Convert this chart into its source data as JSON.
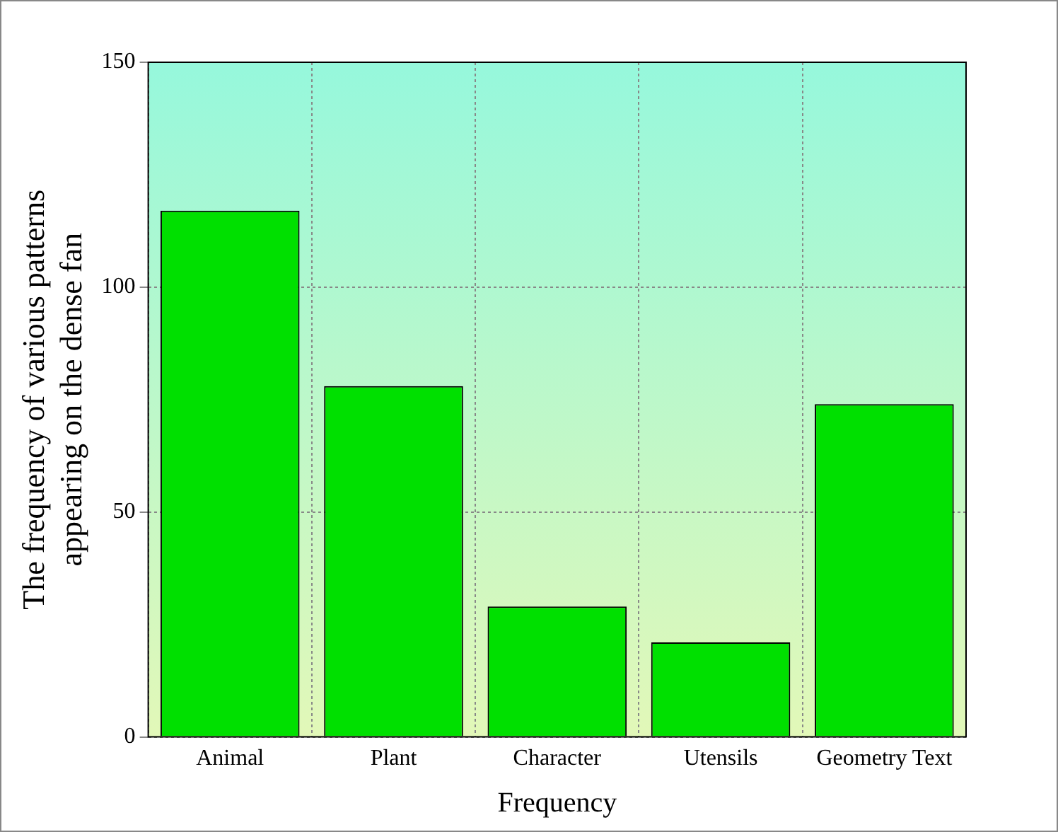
{
  "chart_data": {
    "type": "bar",
    "xlabel": "Frequency",
    "ylabel": "The frequency of various patterns\nappearing on the dense fan",
    "categories": [
      "Animal",
      "Plant",
      "Character",
      "Utensils",
      "Geometry Text"
    ],
    "values": [
      117,
      78,
      29,
      21,
      74
    ],
    "color": "#00e000",
    "ylim": [
      0,
      150
    ],
    "yticks": [
      0,
      50,
      100,
      150
    ],
    "grid": true
  }
}
